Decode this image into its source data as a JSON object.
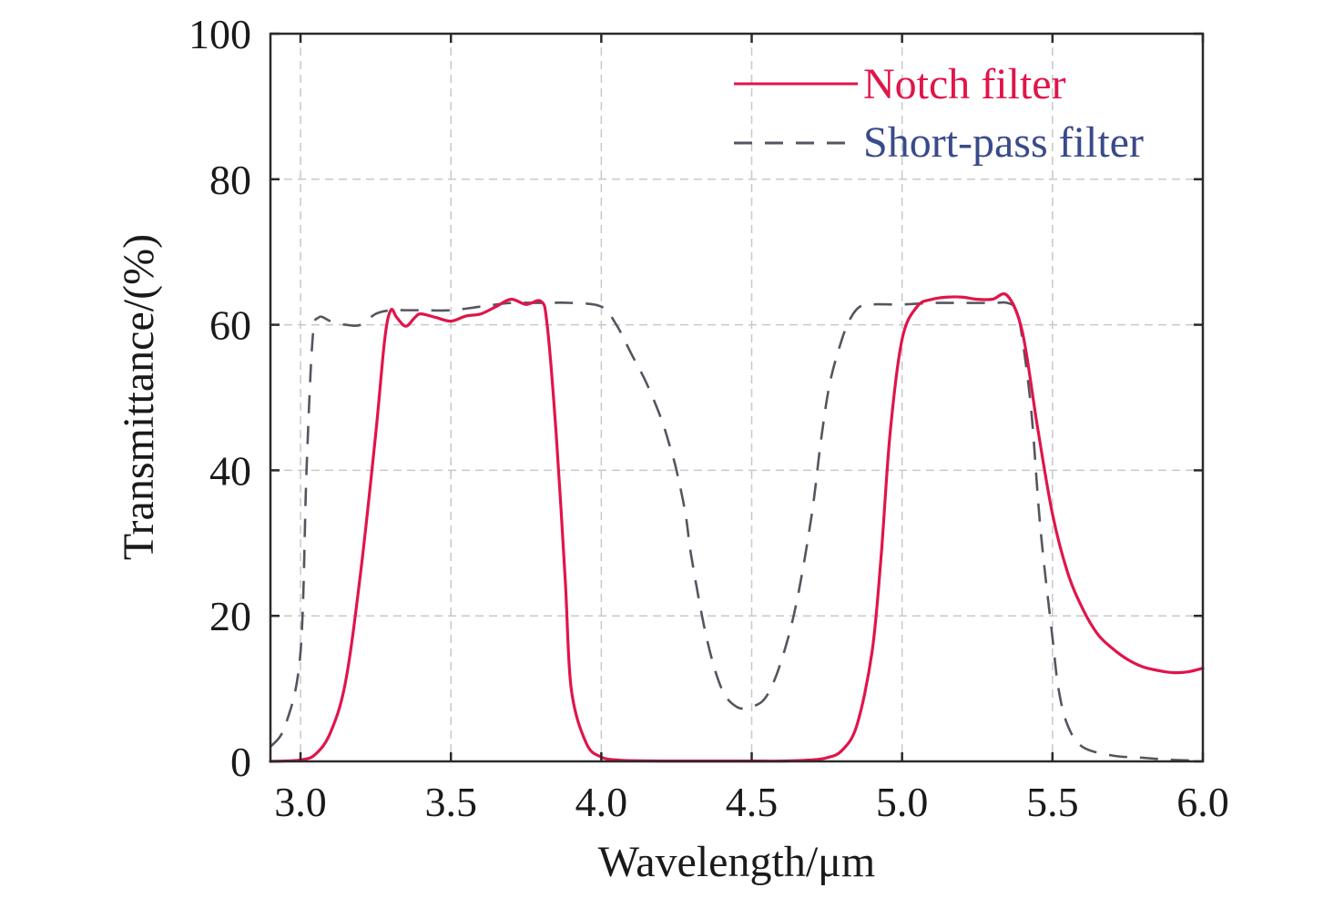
{
  "chart_data": {
    "type": "line",
    "title": "",
    "xlabel": "Wavelength/μm",
    "ylabel": "Transmittance/(%)",
    "xlim": [
      2.9,
      6.0
    ],
    "ylim": [
      0,
      100
    ],
    "xticks": [
      3.0,
      3.5,
      4.0,
      4.5,
      5.0,
      5.5,
      6.0
    ],
    "xtick_labels": [
      "3.0",
      "3.5",
      "4.0",
      "4.5",
      "5.0",
      "5.5",
      "6.0"
    ],
    "yticks": [
      0,
      20,
      40,
      60,
      80,
      100
    ],
    "ytick_labels": [
      "0",
      "20",
      "40",
      "60",
      "80",
      "100"
    ],
    "grid": true,
    "legend_position": "top-right",
    "series": [
      {
        "name": "Notch filter",
        "color": "#e0154a",
        "dash": "solid",
        "x": [
          2.9,
          3.0,
          3.05,
          3.1,
          3.15,
          3.2,
          3.25,
          3.28,
          3.3,
          3.32,
          3.35,
          3.38,
          3.4,
          3.45,
          3.5,
          3.55,
          3.6,
          3.65,
          3.7,
          3.75,
          3.8,
          3.82,
          3.85,
          3.88,
          3.9,
          3.95,
          4.0,
          4.05,
          4.1,
          4.2,
          4.3,
          4.4,
          4.5,
          4.6,
          4.7,
          4.75,
          4.8,
          4.85,
          4.9,
          4.93,
          4.96,
          5.0,
          5.05,
          5.1,
          5.15,
          5.2,
          5.25,
          5.3,
          5.35,
          5.4,
          5.45,
          5.5,
          5.55,
          5.6,
          5.65,
          5.7,
          5.75,
          5.8,
          5.85,
          5.9,
          5.95,
          6.0
        ],
        "y": [
          0,
          0.2,
          1,
          4,
          11,
          26,
          45,
          58,
          62,
          61,
          59.8,
          61,
          61.5,
          61,
          60.5,
          61.2,
          61.5,
          62.5,
          63.5,
          62.8,
          63.2,
          60,
          45,
          25,
          10,
          2.5,
          0.6,
          0.2,
          0.1,
          0.05,
          0.05,
          0.05,
          0.05,
          0.05,
          0.2,
          0.5,
          1.5,
          5,
          15,
          28,
          45,
          58,
          62.5,
          63.5,
          63.8,
          63.8,
          63.5,
          63.5,
          64,
          59,
          46,
          34,
          26,
          21,
          17.5,
          15.5,
          14,
          13,
          12.5,
          12.2,
          12.3,
          12.8
        ]
      },
      {
        "name": "Short-pass filter",
        "color": "#555560",
        "dash": "dashed",
        "x": [
          2.9,
          2.95,
          3.0,
          3.02,
          3.04,
          3.06,
          3.1,
          3.15,
          3.2,
          3.25,
          3.3,
          3.35,
          3.4,
          3.5,
          3.6,
          3.7,
          3.8,
          3.9,
          4.0,
          4.05,
          4.1,
          4.15,
          4.2,
          4.23,
          4.25,
          4.28,
          4.3,
          4.35,
          4.4,
          4.45,
          4.5,
          4.55,
          4.6,
          4.65,
          4.7,
          4.73,
          4.76,
          4.8,
          4.83,
          4.86,
          4.9,
          5.0,
          5.1,
          5.2,
          5.3,
          5.35,
          5.38,
          5.4,
          5.43,
          5.46,
          5.5,
          5.52,
          5.55,
          5.6,
          5.7,
          5.8,
          5.9,
          6.0
        ],
        "y": [
          2,
          5,
          15,
          40,
          58,
          61,
          60.5,
          60,
          60,
          61.5,
          62,
          62,
          62,
          62,
          62.5,
          63,
          63,
          63,
          62.5,
          60,
          56,
          52,
          47,
          43,
          40,
          34,
          28,
          17,
          10,
          7.5,
          7.5,
          9,
          14,
          22,
          34,
          44,
          52,
          58,
          61,
          62.5,
          62.8,
          62.8,
          63,
          63,
          63,
          63,
          62,
          58,
          48,
          32,
          17,
          10,
          5,
          2,
          0.8,
          0.5,
          0.2,
          0.1
        ]
      }
    ]
  }
}
